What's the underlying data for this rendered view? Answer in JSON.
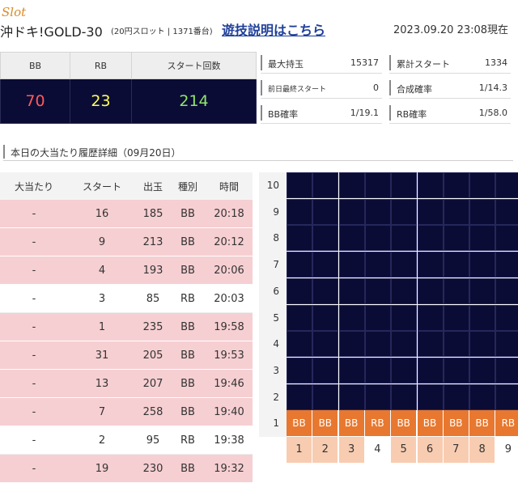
{
  "header": {
    "slot_label": "Slot",
    "machine_name": "沖ドキ!GOLD-30",
    "machine_sub": "(20円スロット | 1371番台)",
    "rules_link": "遊技説明はこちら",
    "timestamp": "2023.09.20 23:08現在"
  },
  "counters": {
    "headers": [
      "BB",
      "RB",
      "スタート回数"
    ],
    "values": [
      "70",
      "23",
      "214"
    ],
    "colors": [
      "#ff5a5a",
      "#ffff5a",
      "#8fe86a"
    ]
  },
  "stats": [
    {
      "label": "最大持玉",
      "value": "15317"
    },
    {
      "label": "累計スタート",
      "value": "1334"
    },
    {
      "label": "前日最終スタート",
      "value": "0"
    },
    {
      "label": "合成確率",
      "value": "1/14.3"
    },
    {
      "label": "BB確率",
      "value": "1/19.1"
    },
    {
      "label": "RB確率",
      "value": "1/58.0"
    }
  ],
  "history": {
    "title": "本日の大当たり履歴詳細（09月20日）",
    "columns": [
      "大当たり",
      "スタート",
      "出玉",
      "種別",
      "時間"
    ],
    "rows": [
      {
        "hit": "-",
        "start": "16",
        "payout": "185",
        "type": "BB",
        "time": "20:18"
      },
      {
        "hit": "-",
        "start": "9",
        "payout": "213",
        "type": "BB",
        "time": "20:12"
      },
      {
        "hit": "-",
        "start": "4",
        "payout": "193",
        "type": "BB",
        "time": "20:06"
      },
      {
        "hit": "-",
        "start": "3",
        "payout": "85",
        "type": "RB",
        "time": "20:03"
      },
      {
        "hit": "-",
        "start": "1",
        "payout": "235",
        "type": "BB",
        "time": "19:58"
      },
      {
        "hit": "-",
        "start": "31",
        "payout": "205",
        "type": "BB",
        "time": "19:53"
      },
      {
        "hit": "-",
        "start": "13",
        "payout": "207",
        "type": "BB",
        "time": "19:46"
      },
      {
        "hit": "-",
        "start": "7",
        "payout": "258",
        "type": "BB",
        "time": "19:40"
      },
      {
        "hit": "-",
        "start": "2",
        "payout": "95",
        "type": "RB",
        "time": "19:38"
      },
      {
        "hit": "-",
        "start": "19",
        "payout": "230",
        "type": "BB",
        "time": "19:32"
      }
    ]
  },
  "graph": {
    "y_labels": [
      "10",
      "9",
      "8",
      "7",
      "6",
      "5",
      "4",
      "3",
      "2",
      "1"
    ],
    "columns": [
      {
        "x": "1",
        "type": "BB",
        "level": 1
      },
      {
        "x": "2",
        "type": "BB",
        "level": 1
      },
      {
        "x": "3",
        "type": "BB",
        "level": 1
      },
      {
        "x": "4",
        "type": "RB",
        "level": 1
      },
      {
        "x": "5",
        "type": "BB",
        "level": 1
      },
      {
        "x": "6",
        "type": "BB",
        "level": 1
      },
      {
        "x": "7",
        "type": "BB",
        "level": 1
      },
      {
        "x": "8",
        "type": "BB",
        "level": 1
      },
      {
        "x": "9",
        "type": "RB",
        "level": 1
      }
    ],
    "colors": {
      "bar": "#e8782f",
      "background": "#0b0c35",
      "x_bb": "#f8ccb0",
      "x_rb": "#ffffff"
    }
  }
}
